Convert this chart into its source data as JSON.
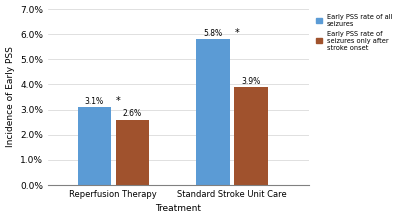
{
  "groups": [
    "Reperfusion Therapy",
    "Standard Stroke Unit Care"
  ],
  "blue_values": [
    3.1,
    5.8
  ],
  "red_values": [
    2.6,
    3.9
  ],
  "blue_labels": [
    "3.1%",
    "5.8%"
  ],
  "red_labels": [
    "2.6%",
    "3.9%"
  ],
  "blue_has_star": [
    true,
    true
  ],
  "blue_color": "#5B9BD5",
  "red_color": "#A0522D",
  "ylabel": "Incidence of Early PSS",
  "xlabel": "Treatment",
  "ylim_max": 7.0,
  "ytick_labels": [
    "0.0%",
    "1.0%",
    "2.0%",
    "3.0%",
    "4.0%",
    "5.0%",
    "6.0%",
    "7.0%"
  ],
  "legend_blue": "Early PSS rate of all\nseizures",
  "legend_red": "Early PSS rate of\nseizures only after\nstroke onset",
  "bar_width": 0.28,
  "bar_gap": 0.04,
  "group_centers": [
    0.55,
    1.55
  ],
  "xlim": [
    0.0,
    2.2
  ]
}
